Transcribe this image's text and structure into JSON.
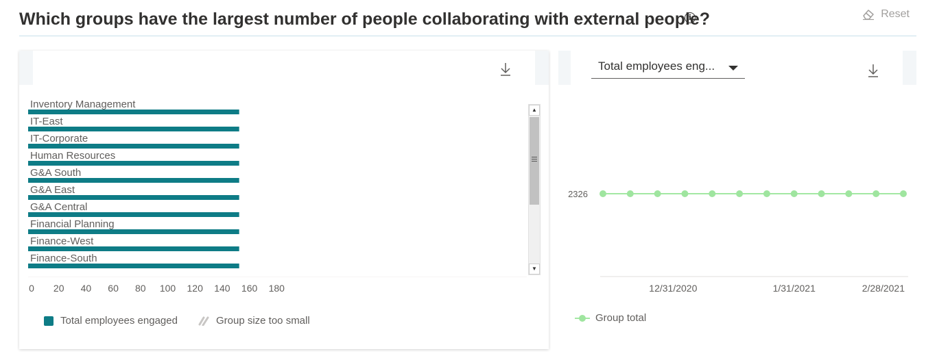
{
  "header": {
    "title": "Which groups have the largest number of people collaborating with external people?",
    "reset_label": "Reset"
  },
  "icons": {
    "info": "info-icon",
    "reset": "eraser-icon",
    "download": "download-icon",
    "caret": "chevron-down-icon"
  },
  "colors": {
    "bar": "#0e7c86",
    "line": "#a3e8a3",
    "point": "#9fe59f",
    "gray": "#c8c6c4"
  },
  "right_panel": {
    "dropdown_value": "Total employees eng..."
  },
  "chart_data": [
    {
      "type": "bar",
      "orientation": "horizontal",
      "categories": [
        "Inventory Management",
        "IT-East",
        "IT-Corporate",
        "Human Resources",
        "G&A South",
        "G&A East",
        "G&A Central",
        "Financial Planning",
        "Finance-West",
        "Finance-South"
      ],
      "series": [
        {
          "name": "Total employees engaged",
          "values": [
            154,
            154,
            154,
            154,
            154,
            154,
            154,
            154,
            154,
            154
          ]
        }
      ],
      "x_ticks": [
        "0",
        "20",
        "40",
        "60",
        "80",
        "100",
        "120",
        "140",
        "160",
        "180"
      ],
      "xlim": [
        0,
        180
      ],
      "legend": [
        "Total employees engaged",
        "Group size too small"
      ],
      "legend_position": "bottom-left",
      "grid": false
    },
    {
      "type": "line",
      "x": [
        "12/13/2020",
        "12/20/2020",
        "12/27/2020",
        "1/3/2021",
        "1/10/2021",
        "1/17/2021",
        "1/24/2021",
        "1/31/2021",
        "2/7/2021",
        "2/14/2021",
        "2/21/2021",
        "2/28/2021"
      ],
      "x_ticks": [
        "12/31/2020",
        "1/31/2021",
        "2/28/2021"
      ],
      "series": [
        {
          "name": "Group total",
          "values": [
            2326,
            2326,
            2326,
            2326,
            2326,
            2326,
            2326,
            2326,
            2326,
            2326,
            2326,
            2326
          ]
        }
      ],
      "y_ticks": [
        "2326"
      ],
      "legend": [
        "Group total"
      ],
      "legend_position": "bottom-left",
      "grid": false
    }
  ]
}
